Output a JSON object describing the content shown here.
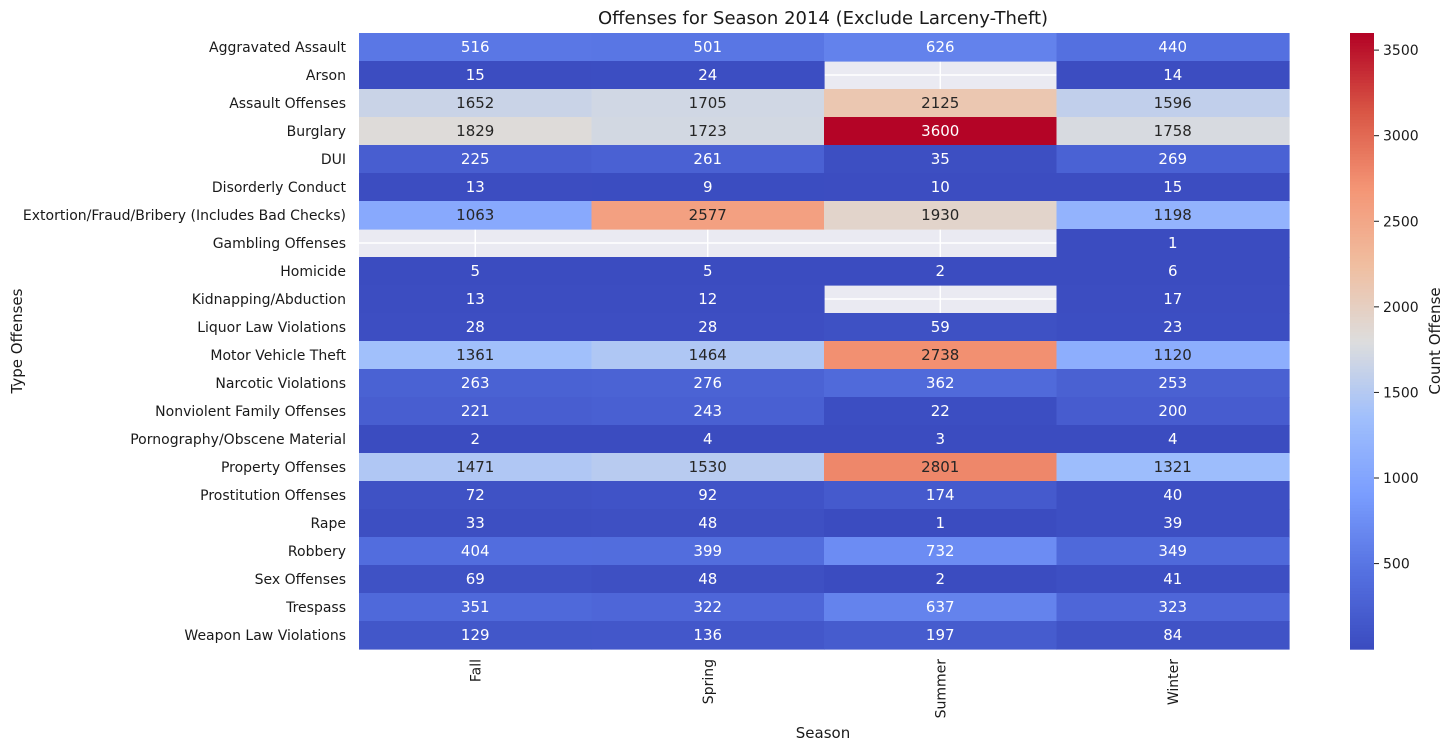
{
  "chart_data": {
    "type": "heatmap",
    "title": "Offenses for Season 2014 (Exclude Larceny-Theft)",
    "xlabel": "Season",
    "ylabel": "Type Offenses",
    "colorbar_label": "Count Offense",
    "colormap": "coolwarm",
    "vmin": 1,
    "vmax": 3600,
    "missing_color": "#eaeaf2",
    "colorbar_ticks": [
      500,
      1000,
      1500,
      2000,
      2500,
      3000,
      3500
    ],
    "columns": [
      "Fall",
      "Spring",
      "Summer",
      "Winter"
    ],
    "rows": [
      "Aggravated Assault",
      "Arson",
      "Assault Offenses",
      "Burglary",
      "DUI",
      "Disorderly Conduct",
      "Extortion/Fraud/Bribery (Includes Bad Checks)",
      "Gambling Offenses",
      "Homicide",
      "Kidnapping/Abduction",
      "Liquor Law Violations",
      "Motor Vehicle Theft",
      "Narcotic Violations",
      "Nonviolent Family Offenses",
      "Pornography/Obscene Material",
      "Property Offenses",
      "Prostitution Offenses",
      "Rape",
      "Robbery",
      "Sex Offenses",
      "Trespass",
      "Weapon Law Violations"
    ],
    "values": [
      [
        516,
        501,
        626,
        440
      ],
      [
        15,
        24,
        null,
        14
      ],
      [
        1652,
        1705,
        2125,
        1596
      ],
      [
        1829,
        1723,
        3600,
        1758
      ],
      [
        225,
        261,
        35,
        269
      ],
      [
        13,
        9,
        10,
        15
      ],
      [
        1063,
        2577,
        1930,
        1198
      ],
      [
        null,
        null,
        null,
        1
      ],
      [
        5,
        5,
        2,
        6
      ],
      [
        13,
        12,
        null,
        17
      ],
      [
        28,
        28,
        59,
        23
      ],
      [
        1361,
        1464,
        2738,
        1120
      ],
      [
        263,
        276,
        362,
        253
      ],
      [
        221,
        243,
        22,
        200
      ],
      [
        2,
        4,
        3,
        4
      ],
      [
        1471,
        1530,
        2801,
        1321
      ],
      [
        72,
        92,
        174,
        40
      ],
      [
        33,
        48,
        1,
        39
      ],
      [
        404,
        399,
        732,
        349
      ],
      [
        69,
        48,
        2,
        41
      ],
      [
        351,
        322,
        637,
        323
      ],
      [
        129,
        136,
        197,
        84
      ]
    ]
  }
}
